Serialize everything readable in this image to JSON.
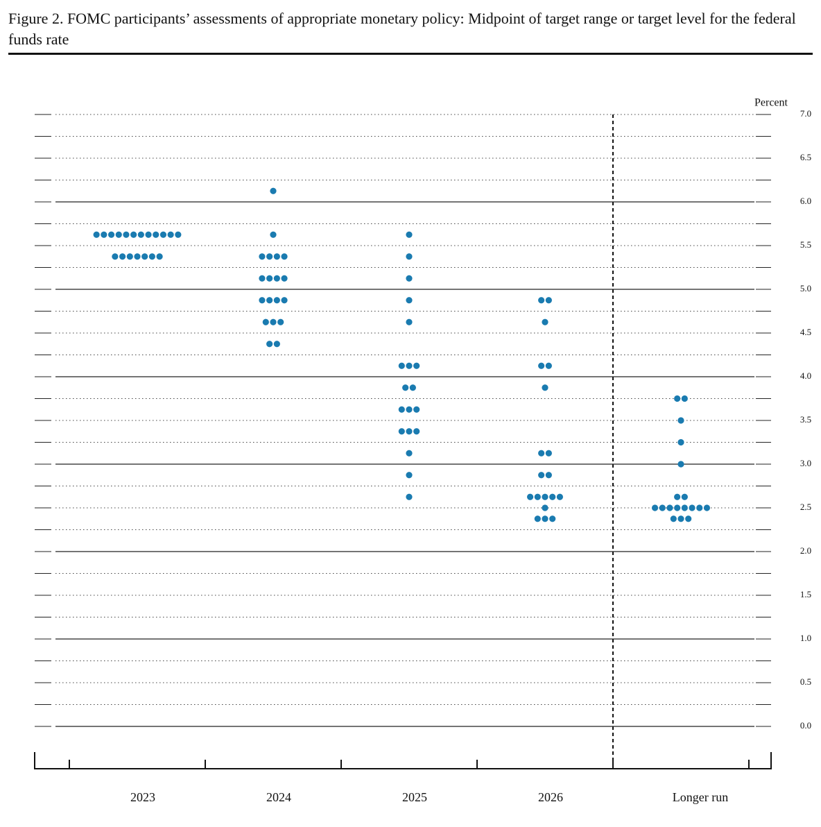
{
  "chart_data": {
    "type": "dot",
    "title": "Figure 2.  FOMC participants’ assessments of appropriate monetary policy:  Midpoint of target range or target level for the federal funds rate",
    "y_label": "Percent",
    "categories": [
      "2023",
      "2024",
      "2025",
      "2026",
      "Longer run"
    ],
    "values": [
      [
        5.625,
        5.625,
        5.625,
        5.625,
        5.625,
        5.625,
        5.625,
        5.625,
        5.625,
        5.625,
        5.625,
        5.625,
        5.375,
        5.375,
        5.375,
        5.375,
        5.375,
        5.375,
        5.375
      ],
      [
        6.125,
        5.625,
        5.375,
        5.375,
        5.375,
        5.375,
        5.125,
        5.125,
        5.125,
        5.125,
        4.875,
        4.875,
        4.875,
        4.875,
        4.625,
        4.625,
        4.625,
        4.375,
        4.375
      ],
      [
        5.625,
        5.375,
        5.125,
        4.875,
        4.625,
        4.125,
        4.125,
        4.125,
        3.875,
        3.875,
        3.625,
        3.625,
        3.625,
        3.375,
        3.375,
        3.375,
        3.125,
        2.875,
        2.625
      ],
      [
        4.875,
        4.875,
        4.625,
        4.125,
        4.125,
        3.875,
        3.125,
        3.125,
        2.875,
        2.875,
        2.625,
        2.625,
        2.625,
        2.625,
        2.625,
        2.5,
        2.375,
        2.375,
        2.375
      ],
      [
        3.75,
        3.75,
        3.5,
        3.25,
        3.0,
        2.625,
        2.625,
        2.5,
        2.5,
        2.5,
        2.5,
        2.5,
        2.5,
        2.5,
        2.5,
        2.375,
        2.375,
        2.375
      ]
    ],
    "color": "#1a7bb0",
    "ylim": [
      0,
      7
    ],
    "yticks": [
      {
        "value": 0,
        "label": "0.0"
      },
      0.5,
      {
        "value": 1,
        "label": "1.0"
      },
      1.5,
      {
        "value": 2,
        "label": "2.0"
      },
      2.5,
      {
        "value": 3,
        "label": "3.0"
      },
      3.5,
      {
        "value": 4,
        "label": "4.0"
      },
      4.5,
      {
        "value": 5,
        "label": "5.0"
      },
      5.5,
      {
        "value": 6,
        "label": "6.0"
      },
      6.5,
      {
        "value": 7,
        "label": "7.0"
      }
    ],
    "grid": true
  }
}
